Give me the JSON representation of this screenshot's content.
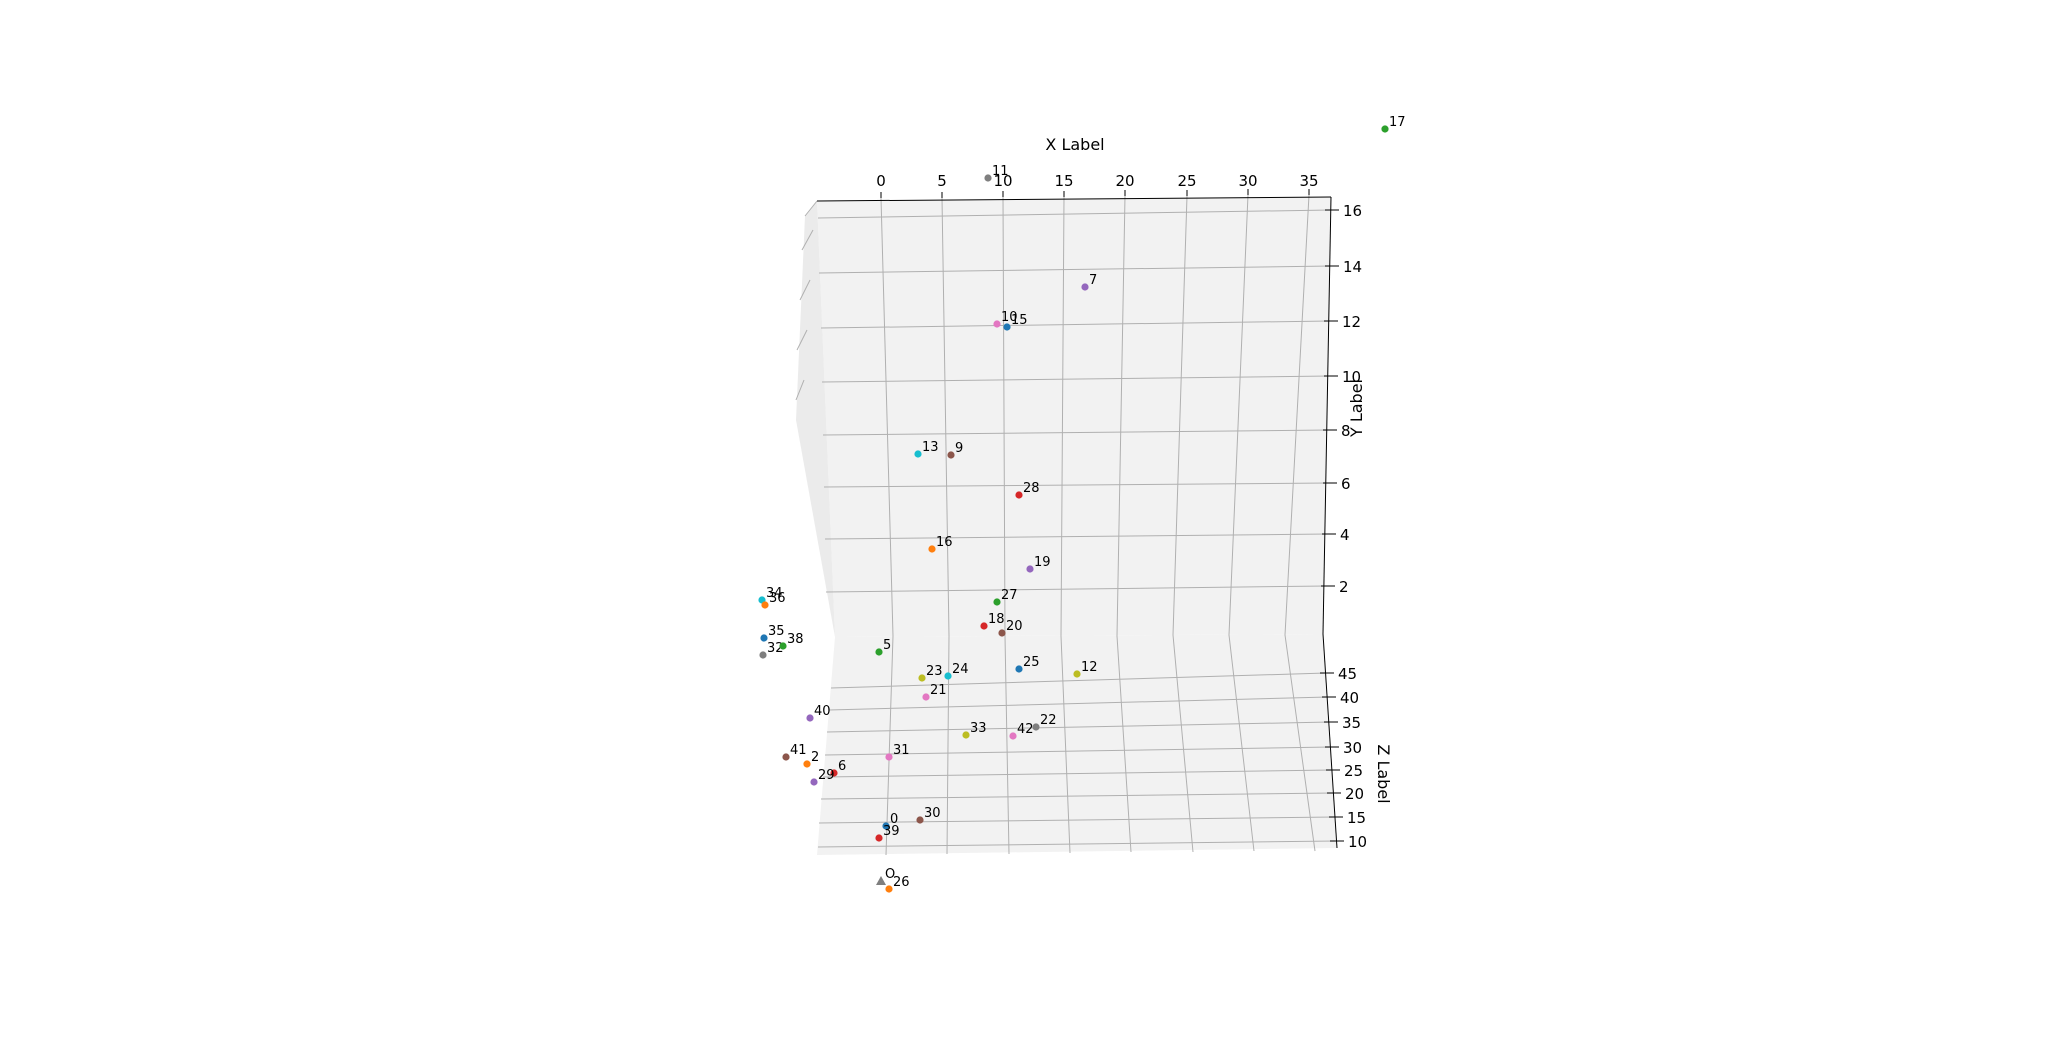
{
  "chart_data": {
    "type": "scatter",
    "projection": "3d",
    "xlabel": "X Label",
    "ylabel": "Y Label",
    "zlabel": "Z Label",
    "x_ticks": [
      "0",
      "5",
      "10",
      "15",
      "20",
      "25",
      "30",
      "35"
    ],
    "y_ticks": [
      "2",
      "4",
      "6",
      "8",
      "10",
      "12",
      "14",
      "16"
    ],
    "z_ticks": [
      "10",
      "15",
      "20",
      "25",
      "30",
      "35",
      "40",
      "45"
    ],
    "grid": true,
    "points": [
      {
        "label": "0",
        "color": "#1f77b4",
        "marker": "o"
      },
      {
        "label": "2",
        "color": "#ff7f0e",
        "marker": "o"
      },
      {
        "label": "5",
        "color": "#2ca02c",
        "marker": "o"
      },
      {
        "label": "6",
        "color": "#d62728",
        "marker": "o"
      },
      {
        "label": "7",
        "color": "#9467bd",
        "marker": "o"
      },
      {
        "label": "9",
        "color": "#8c564b",
        "marker": "o"
      },
      {
        "label": "10",
        "color": "#e377c2",
        "marker": "o"
      },
      {
        "label": "11",
        "color": "#7f7f7f",
        "marker": "o"
      },
      {
        "label": "12",
        "color": "#bcbd22",
        "marker": "o"
      },
      {
        "label": "13",
        "color": "#17becf",
        "marker": "o"
      },
      {
        "label": "15",
        "color": "#1f77b4",
        "marker": "o"
      },
      {
        "label": "16",
        "color": "#ff7f0e",
        "marker": "o"
      },
      {
        "label": "17",
        "color": "#2ca02c",
        "marker": "o"
      },
      {
        "label": "18",
        "color": "#d62728",
        "marker": "o"
      },
      {
        "label": "19",
        "color": "#9467bd",
        "marker": "o"
      },
      {
        "label": "20",
        "color": "#8c564b",
        "marker": "o"
      },
      {
        "label": "21",
        "color": "#e377c2",
        "marker": "o"
      },
      {
        "label": "22",
        "color": "#7f7f7f",
        "marker": "o"
      },
      {
        "label": "23",
        "color": "#bcbd22",
        "marker": "o"
      },
      {
        "label": "24",
        "color": "#17becf",
        "marker": "o"
      },
      {
        "label": "25",
        "color": "#1f77b4",
        "marker": "o"
      },
      {
        "label": "26",
        "color": "#ff7f0e",
        "marker": "o"
      },
      {
        "label": "27",
        "color": "#2ca02c",
        "marker": "o"
      },
      {
        "label": "28",
        "color": "#d62728",
        "marker": "o"
      },
      {
        "label": "29",
        "color": "#9467bd",
        "marker": "o"
      },
      {
        "label": "30",
        "color": "#8c564b",
        "marker": "o"
      },
      {
        "label": "31",
        "color": "#e377c2",
        "marker": "o"
      },
      {
        "label": "32",
        "color": "#7f7f7f",
        "marker": "o"
      },
      {
        "label": "33",
        "color": "#bcbd22",
        "marker": "o"
      },
      {
        "label": "34",
        "color": "#17becf",
        "marker": "o"
      },
      {
        "label": "35",
        "color": "#1f77b4",
        "marker": "o"
      },
      {
        "label": "36",
        "color": "#ff7f0e",
        "marker": "o"
      },
      {
        "label": "38",
        "color": "#2ca02c",
        "marker": "o"
      },
      {
        "label": "39",
        "color": "#d62728",
        "marker": "o"
      },
      {
        "label": "40",
        "color": "#9467bd",
        "marker": "o"
      },
      {
        "label": "41",
        "color": "#8c564b",
        "marker": "o"
      },
      {
        "label": "42",
        "color": "#e377c2",
        "marker": "o"
      },
      {
        "label": "O",
        "color": "#7f7f7f",
        "marker": "^"
      }
    ]
  }
}
